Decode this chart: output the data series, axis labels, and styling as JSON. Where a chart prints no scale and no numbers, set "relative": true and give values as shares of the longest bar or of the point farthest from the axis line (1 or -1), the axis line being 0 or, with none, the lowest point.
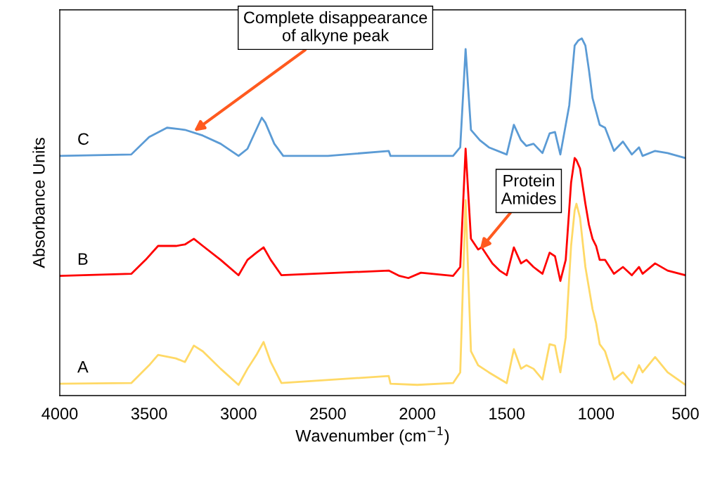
{
  "chart_data": {
    "type": "line",
    "relative": true,
    "xlabel": "Wavenumber (cm$^{−1}$)",
    "ylabel": "Absorbance Units",
    "xlim": [
      4000,
      500
    ],
    "xticks": [
      4000,
      3500,
      3000,
      2500,
      2000,
      1500,
      1000,
      500
    ],
    "grid": false,
    "legend": false,
    "marker": "none",
    "line_style": "solid",
    "series": [
      {
        "name": "A",
        "color": "#ffd966",
        "x": [
          4000,
          3600,
          3500,
          3450,
          3350,
          3300,
          3250,
          3200,
          3100,
          3000,
          2950,
          2900,
          2860,
          2820,
          2760,
          2160,
          2150,
          2000,
          1800,
          1760,
          1730,
          1700,
          1660,
          1600,
          1500,
          1460,
          1420,
          1390,
          1350,
          1300,
          1260,
          1230,
          1200,
          1170,
          1140,
          1120,
          1110,
          1090,
          1060,
          1040,
          1020,
          1000,
          980,
          950,
          900,
          850,
          800,
          760,
          740,
          670,
          600,
          500
        ],
        "values": [
          0.033,
          0.035,
          0.085,
          0.114,
          0.104,
          0.094,
          0.14,
          0.124,
          0.075,
          0.03,
          0.075,
          0.114,
          0.15,
          0.094,
          0.035,
          0.055,
          0.033,
          0.03,
          0.035,
          0.065,
          0.547,
          0.124,
          0.085,
          0.065,
          0.035,
          0.13,
          0.075,
          0.085,
          0.075,
          0.045,
          0.144,
          0.14,
          0.065,
          0.163,
          0.419,
          0.518,
          0.537,
          0.498,
          0.36,
          0.301,
          0.242,
          0.203,
          0.144,
          0.124,
          0.045,
          0.065,
          0.035,
          0.085,
          0.065,
          0.108,
          0.065,
          0.03
        ]
      },
      {
        "name": "B",
        "color": "#ff0000",
        "x": [
          4000,
          3600,
          3520,
          3450,
          3350,
          3300,
          3250,
          3200,
          3100,
          3000,
          2950,
          2900,
          2860,
          2820,
          2760,
          2160,
          2100,
          2050,
          1980,
          1800,
          1760,
          1730,
          1700,
          1660,
          1640,
          1580,
          1540,
          1500,
          1460,
          1420,
          1390,
          1350,
          1300,
          1260,
          1230,
          1200,
          1170,
          1140,
          1120,
          1110,
          1090,
          1060,
          1040,
          1020,
          1000,
          980,
          950,
          900,
          850,
          800,
          760,
          740,
          670,
          600,
          500
        ],
        "values": [
          0.335,
          0.341,
          0.38,
          0.419,
          0.419,
          0.423,
          0.439,
          0.419,
          0.38,
          0.337,
          0.38,
          0.4,
          0.415,
          0.38,
          0.337,
          0.35,
          0.335,
          0.329,
          0.344,
          0.335,
          0.36,
          0.691,
          0.439,
          0.409,
          0.415,
          0.37,
          0.35,
          0.337,
          0.415,
          0.37,
          0.38,
          0.36,
          0.341,
          0.4,
          0.39,
          0.321,
          0.38,
          0.596,
          0.665,
          0.659,
          0.636,
          0.537,
          0.478,
          0.439,
          0.419,
          0.38,
          0.38,
          0.341,
          0.36,
          0.337,
          0.36,
          0.341,
          0.37,
          0.35,
          0.337
        ]
      },
      {
        "name": "C",
        "color": "#5b9bd5",
        "x": [
          4000,
          3600,
          3500,
          3400,
          3300,
          3200,
          3100,
          3000,
          2950,
          2920,
          2870,
          2850,
          2800,
          2750,
          2500,
          2160,
          2150,
          2000,
          1800,
          1760,
          1730,
          1700,
          1650,
          1600,
          1500,
          1460,
          1420,
          1390,
          1350,
          1300,
          1260,
          1230,
          1200,
          1150,
          1120,
          1100,
          1080,
          1060,
          1040,
          1020,
          980,
          950,
          900,
          850,
          800,
          760,
          740,
          670,
          600,
          500
        ],
        "values": [
          0.671,
          0.675,
          0.724,
          0.75,
          0.744,
          0.728,
          0.705,
          0.671,
          0.691,
          0.724,
          0.778,
          0.764,
          0.705,
          0.671,
          0.671,
          0.685,
          0.671,
          0.671,
          0.671,
          0.695,
          0.97,
          0.744,
          0.715,
          0.695,
          0.675,
          0.758,
          0.715,
          0.699,
          0.705,
          0.679,
          0.734,
          0.738,
          0.675,
          0.813,
          0.98,
          0.994,
          1.0,
          0.98,
          0.911,
          0.833,
          0.758,
          0.75,
          0.685,
          0.711,
          0.675,
          0.695,
          0.671,
          0.685,
          0.679,
          0.665
        ]
      }
    ],
    "annotations": [
      {
        "text": "Complete disappearance\nof alkyne peak",
        "x": 3250,
        "y": 0.74
      },
      {
        "text": "Protein\nAmides",
        "x": 1650,
        "y": 0.409
      }
    ]
  }
}
